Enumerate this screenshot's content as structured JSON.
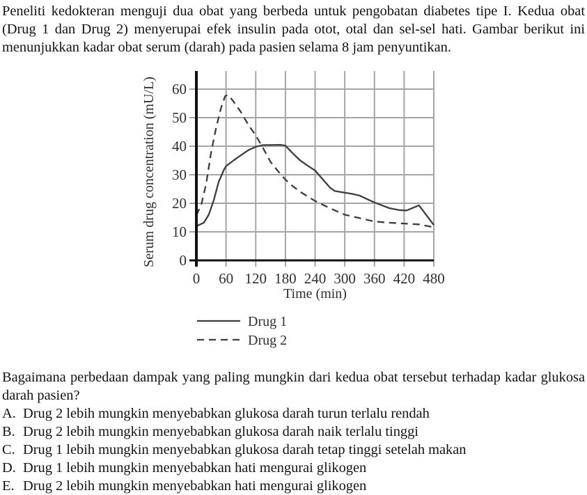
{
  "intro_text": "Peneliti kedokteran menguji dua obat yang berbeda untuk pengobatan diabetes tipe I. Kedua obat (Drug 1 dan Drug 2) menyerupai efek insulin pada otot, otal dan sel-sel hati. Gambar berikut ini menunjukkan kadar obat serum (darah) pada pasien selama 8 jam penyuntikan.",
  "chart_data": {
    "type": "line",
    "xlabel": "Time (min)",
    "ylabel": "Serum drug concentration (mU/L)",
    "x_ticks": [
      0,
      60,
      120,
      180,
      240,
      300,
      360,
      420,
      480
    ],
    "y_ticks": [
      0,
      10,
      20,
      30,
      40,
      50,
      60
    ],
    "xlim": [
      0,
      480
    ],
    "ylim": [
      0,
      66
    ],
    "grid": true,
    "legend_position": "below-left",
    "colors": {
      "curve": "#3d3d3d",
      "grid": "#a5a5a5",
      "axis": "#111111"
    },
    "series": [
      {
        "name": "Drug 1",
        "style": "solid",
        "points": [
          [
            0,
            12
          ],
          [
            15,
            13.2
          ],
          [
            25,
            16
          ],
          [
            35,
            21
          ],
          [
            45,
            27.5
          ],
          [
            55,
            31.5
          ],
          [
            60,
            33
          ],
          [
            75,
            35
          ],
          [
            90,
            36.8
          ],
          [
            105,
            38.6
          ],
          [
            120,
            39.8
          ],
          [
            135,
            40.4
          ],
          [
            170,
            40.5
          ],
          [
            180,
            40.2
          ],
          [
            195,
            37.5
          ],
          [
            210,
            35
          ],
          [
            225,
            33.2
          ],
          [
            240,
            31.5
          ],
          [
            255,
            28.5
          ],
          [
            270,
            25.5
          ],
          [
            280,
            24.3
          ],
          [
            300,
            23.7
          ],
          [
            315,
            23.3
          ],
          [
            330,
            22.7
          ],
          [
            345,
            21.5
          ],
          [
            360,
            20.3
          ],
          [
            390,
            18.3
          ],
          [
            410,
            17.6
          ],
          [
            425,
            17.5
          ],
          [
            450,
            19.3
          ],
          [
            480,
            12.4
          ]
        ]
      },
      {
        "name": "Drug 2",
        "style": "dashed",
        "points": [
          [
            0,
            15.8
          ],
          [
            10,
            19.5
          ],
          [
            20,
            27
          ],
          [
            30,
            38
          ],
          [
            40,
            46.5
          ],
          [
            50,
            53.5
          ],
          [
            58,
            57.5
          ],
          [
            63,
            58
          ],
          [
            70,
            56.8
          ],
          [
            80,
            54.5
          ],
          [
            90,
            52
          ],
          [
            100,
            49
          ],
          [
            110,
            46.3
          ],
          [
            120,
            43.8
          ],
          [
            135,
            39.3
          ],
          [
            150,
            34.5
          ],
          [
            165,
            31.3
          ],
          [
            180,
            28.3
          ],
          [
            195,
            26
          ],
          [
            210,
            24
          ],
          [
            240,
            20.8
          ],
          [
            270,
            18.3
          ],
          [
            300,
            16
          ],
          [
            330,
            14.8
          ],
          [
            360,
            13.6
          ],
          [
            390,
            13.2
          ],
          [
            420,
            12.9
          ],
          [
            450,
            12.6
          ],
          [
            480,
            11.6
          ]
        ]
      }
    ]
  },
  "question": {
    "text": "Bagaimana perbedaan dampak yang paling mungkin dari kedua obat tersebut terhadap kadar glukosa darah pasien?",
    "options": [
      {
        "letter": "A.",
        "text": "Drug 2 lebih mungkin menyebabkan glukosa darah turun terlalu rendah"
      },
      {
        "letter": "B.",
        "text": "Drug 2 lebih mungkin menyebabkan glukosa darah naik terlalu tinggi"
      },
      {
        "letter": "C.",
        "text": "Drug 1 lebih mungkin menyebabkan glukosa darah tetap tinggi setelah makan"
      },
      {
        "letter": "D.",
        "text": "Drug 1 lebih mungkin menyebabkan hati mengurai glikogen"
      },
      {
        "letter": "E.",
        "text": "Drug 2 lebih mungkin menyebabkan hati mengurai glikogen"
      }
    ]
  }
}
